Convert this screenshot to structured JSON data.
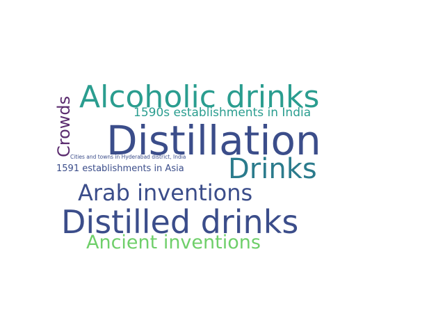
{
  "words": [
    {
      "text": "Alcoholic drinks",
      "color": "#2a9d8f"
    },
    {
      "text": "1590s establishments in India",
      "color": "#2a9d8f"
    },
    {
      "text": "Crowds",
      "color": "#5b2c6f"
    },
    {
      "text": "Distillation",
      "color": "#3b4d8a"
    },
    {
      "text": "Cities and towns in Hyderabad district, India",
      "color": "#3b4d8a"
    },
    {
      "text": "Drinks",
      "color": "#2b7b8c"
    },
    {
      "text": "1591 establishments in Asia",
      "color": "#3b4d8a"
    },
    {
      "text": "Arab inventions",
      "color": "#3b4d8a"
    },
    {
      "text": "Distilled drinks",
      "color": "#3b4d8a"
    },
    {
      "text": "Ancient inventions",
      "color": "#6fcf6a"
    }
  ]
}
